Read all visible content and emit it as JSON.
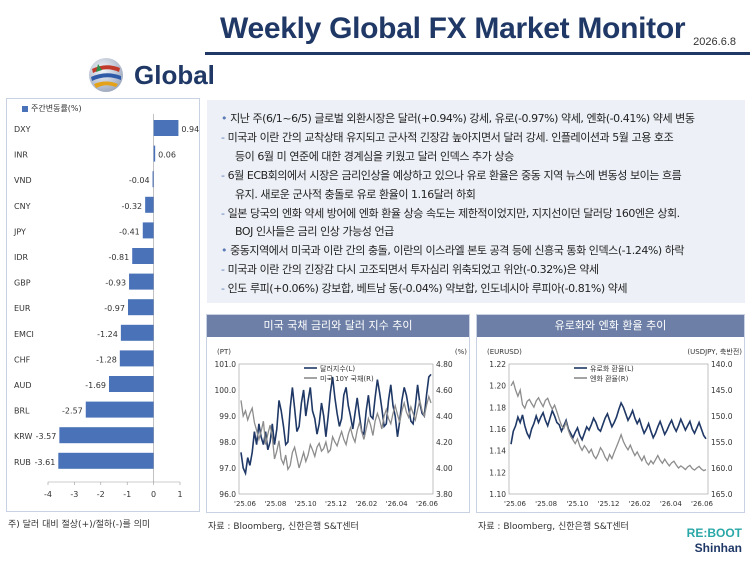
{
  "header": {
    "title": "Weekly Global FX Market Monitor",
    "date": "2026.6.8",
    "section": "Global"
  },
  "summary": {
    "lines": [
      {
        "marker": "•",
        "text": " 지난 주(6/1~6/5) 글로벌 외환시장은 달러(+0.94%) 강세, 유로(-0.97%) 약세, 엔화(-0.41%) 약세 변동"
      },
      {
        "marker": "-",
        "text": " 미국과 이란 간의 교착상태 유지되고 군사적 긴장감 높아지면서 달러 강세. 인플레이션과 5월 고용 호조"
      },
      {
        "marker": "",
        "text": "등이 6월 미 연준에 대한 경계심을 키웠고 달러 인덱스 추가 상승"
      },
      {
        "marker": "-",
        "text": " 6월 ECB회의에서 시장은 금리인상을 예상하고 있으나 유로 환율은 중동 지역 뉴스에 변동성 보이는 흐름"
      },
      {
        "marker": "",
        "text": "유지. 새로운 군사적 충돌로 유로 환율이 1.16달러 하회"
      },
      {
        "marker": "-",
        "text": " 일본 당국의 엔화 약세 방어에 엔화 환율 상승 속도는 제한적이었지만, 지지선이던 달러당 160엔은 상회."
      },
      {
        "marker": "",
        "text": "BOJ 인사들은 금리 인상 가능성 언급"
      },
      {
        "marker": "•",
        "text": " 중동지역에서 미국과 이란 간의 충돌, 이란의 이스라엘 본토 공격 등에 신흥국 통화 인덱스(-1.24%) 하락"
      },
      {
        "marker": "-",
        "text": "   미국과 이란 간의 긴장감 다시 고조되면서 투자심리 위축되었고 위안(-0.32%)은 약세"
      },
      {
        "marker": "-",
        "text": "    인도 루피(+0.06%) 강보합, 베트남 동(-0.04%) 약보합, 인도네시아 루피아(-0.81%) 약세"
      }
    ]
  },
  "fx_note": "주) 달러 대비 절상(+)/절하(-)를 의미",
  "chart1_title": "미국 국채 금리와 달러 지수 추이",
  "chart1_source": "자료 : Bloomberg, 신한은행 S&T센터",
  "chart2_title": "유로화와 엔화 환율 추이",
  "chart2_source": "자료 : Bloomberg, 신한은행 S&T센터",
  "logo": {
    "line1": "RE:BOOT",
    "line2": "Shinhan"
  },
  "colors": {
    "navy": "#1f3866",
    "bar": "#4a72b8",
    "gray": "#8c8c8c",
    "panel_bg": "#edf1f7",
    "header_bg": "#6d7fa6"
  },
  "chart_data": [
    {
      "type": "bar",
      "orientation": "horizontal",
      "legend": "주간변동률(%)",
      "categories": [
        "DXY",
        "INR",
        "VND",
        "CNY",
        "JPY",
        "IDR",
        "GBP",
        "EUR",
        "EMCI",
        "CHF",
        "AUD",
        "BRL",
        "KRW",
        "RUB"
      ],
      "values": [
        0.94,
        0.06,
        -0.04,
        -0.32,
        -0.41,
        -0.81,
        -0.93,
        -0.97,
        -1.24,
        -1.28,
        -1.69,
        -2.57,
        -3.57,
        -3.61
      ],
      "labels": [
        "0.94",
        "0.06",
        "-0.04",
        "-0.32",
        "-0.41",
        "-0.81",
        "-0.93",
        "-0.97",
        "-1.24",
        "-1.28",
        "-1.69",
        "-2.57",
        "-3.57",
        "-3.61"
      ],
      "xlim": [
        -4,
        1
      ],
      "xticks": [
        "-4",
        "-3",
        "-2",
        "-1",
        "0",
        "1"
      ]
    },
    {
      "type": "line",
      "title": "미국 국채 금리와 달러 지수 추이",
      "left_unit": "(PT)",
      "right_unit": "(%)",
      "ylim_left": [
        96.0,
        101.0
      ],
      "ylim_right": [
        3.8,
        4.8
      ],
      "yticks_left": [
        "101.0",
        "100.0",
        "99.0",
        "98.0",
        "97.0",
        "96.0"
      ],
      "yticks_right": [
        "4.80",
        "4.60",
        "4.40",
        "4.20",
        "4.00",
        "3.80"
      ],
      "xticks": [
        "'25.06",
        "'25.08",
        "'25.10",
        "'25.12",
        "'26.02",
        "'26.04",
        "'26.06"
      ],
      "series": [
        {
          "name": "달러지수(L)",
          "axis": "left",
          "color": "#1f3866",
          "values": [
            97.6,
            97.0,
            96.8,
            97.4,
            97.1,
            97.6,
            98.4,
            97.9,
            98.7,
            98.2,
            97.9,
            98.4,
            97.7,
            98.0,
            98.7,
            97.9,
            98.5,
            99.6,
            99.2,
            98.6,
            97.9,
            98.0,
            99.3,
            100.1,
            99.3,
            98.4,
            98.6,
            99.5,
            100.0,
            99.0,
            99.6,
            100.1,
            99.2,
            98.9,
            98.3,
            98.7,
            99.5,
            99.0,
            98.2,
            99.0,
            99.9,
            100.5,
            99.7,
            99.1,
            98.6,
            98.9,
            99.8,
            100.1,
            99.4,
            99.0,
            98.5,
            99.1,
            99.7,
            99.0,
            98.4,
            98.3,
            99.2,
            99.8,
            99.0,
            98.9,
            99.7,
            100.4,
            99.9,
            99.3,
            98.6,
            98.7,
            99.6,
            100.2,
            99.4,
            99.0,
            98.2,
            98.8,
            99.6,
            100.1,
            99.8,
            99.3,
            98.8,
            98.7,
            99.4,
            100.2,
            99.5,
            99.1,
            99.0,
            99.8,
            100.5,
            100.6
          ]
        },
        {
          "name": "미국 10Y 국채(R)",
          "axis": "right",
          "color": "#8c8c8c",
          "values": [
            4.52,
            4.4,
            4.44,
            4.37,
            4.42,
            4.46,
            4.35,
            4.29,
            4.22,
            4.28,
            4.36,
            4.18,
            4.26,
            4.33,
            4.24,
            4.07,
            4.13,
            4.21,
            4.07,
            4.03,
            4.1,
            3.99,
            4.02,
            4.12,
            4.16,
            4.08,
            4.0,
            4.06,
            4.12,
            4.05,
            4.1,
            4.18,
            4.14,
            4.09,
            4.16,
            4.19,
            4.13,
            4.15,
            4.2,
            4.12,
            4.14,
            4.24,
            4.2,
            4.17,
            4.23,
            4.28,
            4.22,
            4.18,
            4.26,
            4.31,
            4.24,
            4.2,
            4.29,
            4.35,
            4.28,
            4.22,
            4.3,
            4.38,
            4.33,
            4.25,
            4.36,
            4.42,
            4.37,
            4.3,
            4.4,
            4.45,
            4.38,
            4.34,
            4.42,
            4.48,
            4.41,
            4.35,
            4.44,
            4.5,
            4.43,
            4.39,
            4.47,
            4.42,
            4.37,
            4.45,
            4.52,
            4.44,
            4.4,
            4.48,
            4.55,
            4.5
          ]
        }
      ]
    },
    {
      "type": "line",
      "title": "유로화와 엔화 환율 추이",
      "left_unit": "(EURUSD)",
      "right_unit": "(USDJPY, 축반전)",
      "right_axis_reversed": true,
      "ylim_left": [
        1.1,
        1.22
      ],
      "ylim_right": [
        140.0,
        165.0
      ],
      "yticks_left": [
        "1.22",
        "1.20",
        "1.18",
        "1.16",
        "1.14",
        "1.12",
        "1.10"
      ],
      "yticks_right": [
        "140.0",
        "145.0",
        "150.0",
        "155.0",
        "160.0",
        "165.0"
      ],
      "xticks": [
        "'25.06",
        "'25.08",
        "'25.10",
        "'25.12",
        "'26.02",
        "'26.04",
        "'26.06"
      ],
      "series": [
        {
          "name": "유로화 환율(L)",
          "axis": "left",
          "color": "#1f3866",
          "values": [
            1.146,
            1.158,
            1.163,
            1.171,
            1.166,
            1.173,
            1.163,
            1.156,
            1.152,
            1.16,
            1.165,
            1.172,
            1.166,
            1.171,
            1.175,
            1.168,
            1.163,
            1.17,
            1.177,
            1.172,
            1.166,
            1.164,
            1.158,
            1.163,
            1.168,
            1.16,
            1.156,
            1.152,
            1.157,
            1.161,
            1.154,
            1.15,
            1.156,
            1.162,
            1.159,
            1.164,
            1.17,
            1.166,
            1.16,
            1.158,
            1.164,
            1.17,
            1.174,
            1.168,
            1.162,
            1.166,
            1.171,
            1.178,
            1.184,
            1.18,
            1.174,
            1.168,
            1.172,
            1.177,
            1.17,
            1.165,
            1.169,
            1.162,
            1.156,
            1.16,
            1.165,
            1.158,
            1.152,
            1.156,
            1.162,
            1.167,
            1.161,
            1.155,
            1.159,
            1.164,
            1.168,
            1.162,
            1.158,
            1.163,
            1.169,
            1.164,
            1.159,
            1.163,
            1.167,
            1.16,
            1.156,
            1.161,
            1.166,
            1.16,
            1.154,
            1.151
          ]
        },
        {
          "name": "엔화 환율(R)",
          "axis": "right",
          "color": "#8c8c8c",
          "values": [
            144.2,
            143.4,
            145.0,
            146.2,
            145.0,
            147.8,
            148.5,
            147.2,
            146.8,
            147.6,
            148.3,
            147.1,
            146.5,
            147.4,
            148.2,
            147.0,
            146.6,
            147.8,
            148.7,
            147.9,
            149.2,
            150.6,
            151.8,
            152.4,
            151.2,
            152.8,
            153.9,
            154.6,
            155.3,
            154.4,
            155.8,
            156.6,
            155.7,
            156.3,
            157.1,
            156.4,
            157.6,
            158.2,
            157.3,
            156.1,
            156.8,
            157.9,
            158.6,
            157.4,
            158.2,
            157.0,
            155.9,
            154.8,
            153.6,
            154.9,
            155.8,
            156.5,
            155.6,
            156.7,
            157.6,
            156.9,
            157.8,
            158.6,
            157.7,
            158.9,
            159.4,
            158.6,
            159.2,
            158.4,
            157.6,
            158.5,
            159.1,
            158.3,
            159.0,
            159.6,
            159.0,
            158.7,
            159.4,
            160.0,
            159.6,
            159.9,
            160.3,
            159.8,
            159.5,
            160.1,
            160.4,
            160.0,
            159.7,
            160.2,
            160.5,
            160.3
          ]
        }
      ]
    }
  ]
}
